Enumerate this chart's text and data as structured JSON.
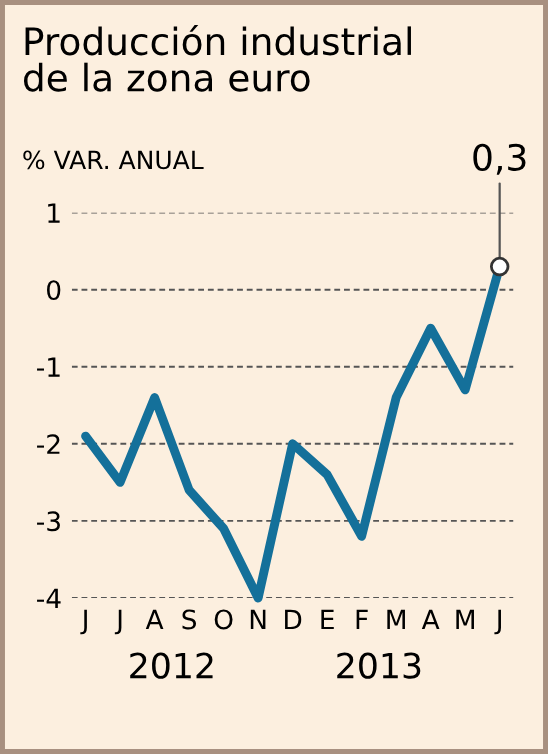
{
  "chart_data": {
    "type": "line",
    "title": "Producción industrial\nde la zona euro",
    "ylabel": "% VAR. ANUAL",
    "categories": [
      "J",
      "J",
      "A",
      "S",
      "O",
      "N",
      "D",
      "E",
      "F",
      "M",
      "A",
      "M",
      "J"
    ],
    "series": [
      {
        "color": "#14709a",
        "values": [
          -1.9,
          -2.5,
          -1.4,
          -2.6,
          -3.1,
          -4.0,
          -2.0,
          -2.4,
          -3.2,
          -1.4,
          -0.5,
          -1.3,
          0.3
        ],
        "value_labels": [
          null,
          null,
          null,
          null,
          null,
          null,
          null,
          null,
          null,
          null,
          null,
          null,
          "0,3"
        ]
      }
    ],
    "ylim": [
      -4,
      1
    ],
    "yticks": [
      -4,
      -3,
      -2,
      -1,
      0,
      1
    ],
    "grid": "y",
    "line_style": "solid",
    "annotations": [
      "2012",
      "2013"
    ]
  }
}
